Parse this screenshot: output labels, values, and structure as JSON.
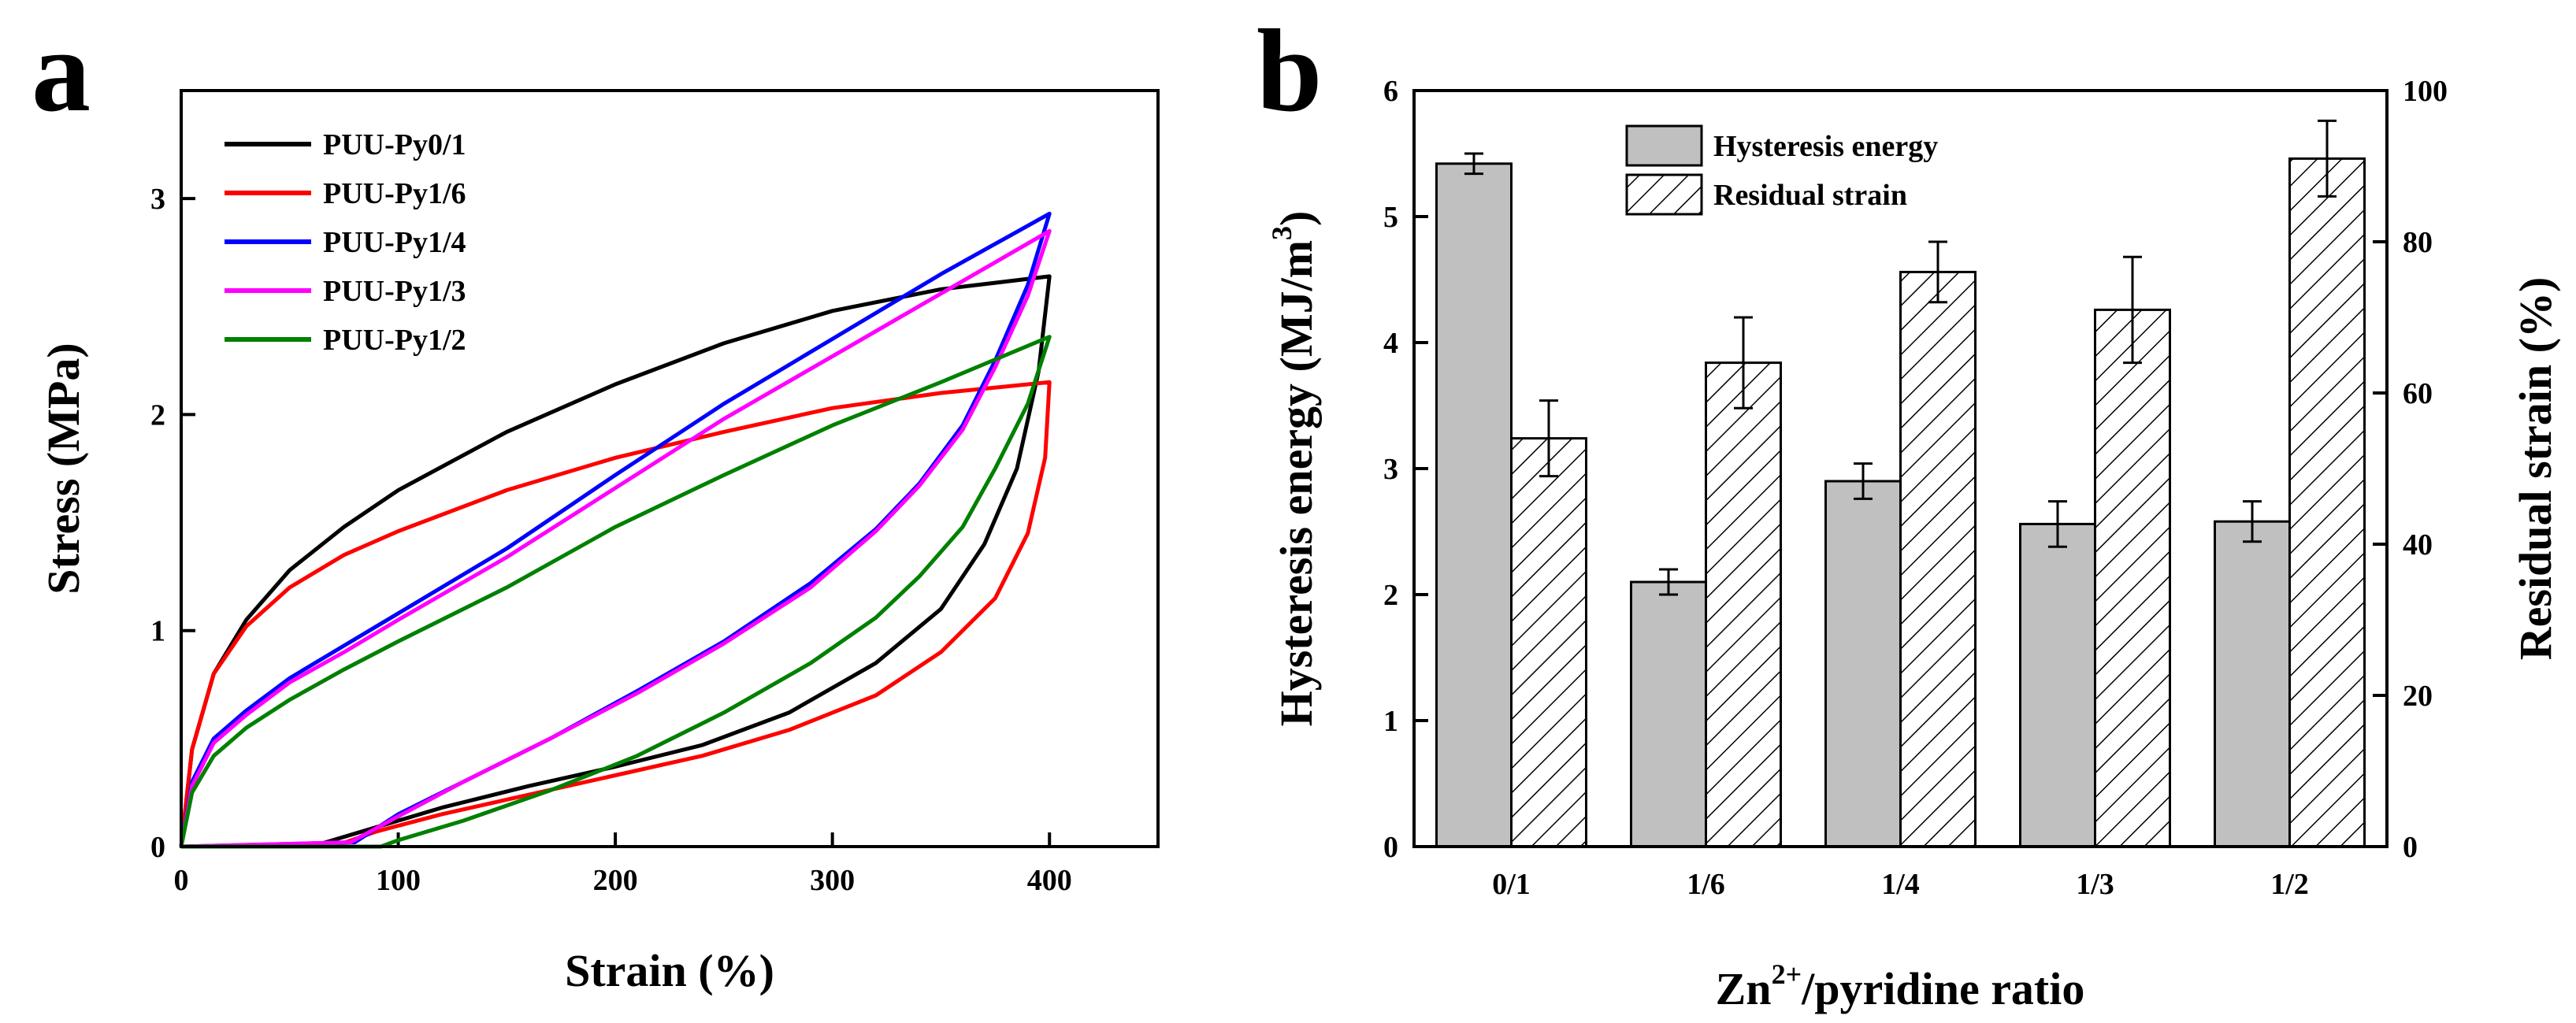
{
  "chart_data": [
    {
      "panel": "a",
      "type": "line",
      "title": "",
      "xlabel": "Strain (%)",
      "ylabel": "Stress (MPa)",
      "xlim": [
        0,
        450
      ],
      "ylim": [
        0,
        3.5
      ],
      "xticks": [
        0,
        100,
        200,
        300,
        400
      ],
      "yticks": [
        0,
        1,
        2,
        3
      ],
      "legend_position": "top-left",
      "series": [
        {
          "name": "PUU-Py0/1",
          "color": "#000000",
          "loading": [
            [
              0,
              0
            ],
            [
              5,
              0.45
            ],
            [
              15,
              0.8
            ],
            [
              30,
              1.05
            ],
            [
              50,
              1.28
            ],
            [
              75,
              1.48
            ],
            [
              100,
              1.65
            ],
            [
              150,
              1.92
            ],
            [
              200,
              2.14
            ],
            [
              250,
              2.33
            ],
            [
              300,
              2.48
            ],
            [
              350,
              2.58
            ],
            [
              400,
              2.64
            ]
          ],
          "unloading": [
            [
              400,
              2.64
            ],
            [
              395,
              2.2
            ],
            [
              385,
              1.75
            ],
            [
              370,
              1.4
            ],
            [
              350,
              1.1
            ],
            [
              320,
              0.85
            ],
            [
              280,
              0.62
            ],
            [
              240,
              0.47
            ],
            [
              200,
              0.37
            ],
            [
              160,
              0.28
            ],
            [
              120,
              0.18
            ],
            [
              90,
              0.09
            ],
            [
              60,
              0.0
            ],
            [
              0,
              0.0
            ]
          ]
        },
        {
          "name": "PUU-Py1/6",
          "color": "#ff0000",
          "loading": [
            [
              0,
              0
            ],
            [
              5,
              0.45
            ],
            [
              15,
              0.8
            ],
            [
              30,
              1.02
            ],
            [
              50,
              1.2
            ],
            [
              75,
              1.35
            ],
            [
              100,
              1.46
            ],
            [
              150,
              1.65
            ],
            [
              200,
              1.8
            ],
            [
              250,
              1.92
            ],
            [
              300,
              2.03
            ],
            [
              350,
              2.1
            ],
            [
              400,
              2.15
            ]
          ],
          "unloading": [
            [
              400,
              2.15
            ],
            [
              398,
              1.8
            ],
            [
              390,
              1.45
            ],
            [
              375,
              1.15
            ],
            [
              350,
              0.9
            ],
            [
              320,
              0.7
            ],
            [
              280,
              0.54
            ],
            [
              240,
              0.42
            ],
            [
              200,
              0.33
            ],
            [
              160,
              0.24
            ],
            [
              120,
              0.15
            ],
            [
              90,
              0.07
            ],
            [
              70,
              0.0
            ],
            [
              0,
              0.0
            ]
          ]
        },
        {
          "name": "PUU-Py1/4",
          "color": "#0000ff",
          "loading": [
            [
              0,
              0
            ],
            [
              5,
              0.3
            ],
            [
              15,
              0.5
            ],
            [
              30,
              0.63
            ],
            [
              50,
              0.78
            ],
            [
              75,
              0.93
            ],
            [
              100,
              1.08
            ],
            [
              150,
              1.38
            ],
            [
              200,
              1.72
            ],
            [
              250,
              2.05
            ],
            [
              300,
              2.35
            ],
            [
              350,
              2.65
            ],
            [
              400,
              2.93
            ]
          ],
          "unloading": [
            [
              400,
              2.93
            ],
            [
              390,
              2.6
            ],
            [
              375,
              2.25
            ],
            [
              360,
              1.95
            ],
            [
              340,
              1.68
            ],
            [
              320,
              1.47
            ],
            [
              290,
              1.22
            ],
            [
              250,
              0.95
            ],
            [
              210,
              0.72
            ],
            [
              170,
              0.5
            ],
            [
              130,
              0.3
            ],
            [
              100,
              0.15
            ],
            [
              80,
              0.02
            ],
            [
              0,
              0.0
            ]
          ]
        },
        {
          "name": "PUU-Py1/3",
          "color": "#ff00ff",
          "loading": [
            [
              0,
              0
            ],
            [
              5,
              0.28
            ],
            [
              15,
              0.48
            ],
            [
              30,
              0.61
            ],
            [
              50,
              0.76
            ],
            [
              75,
              0.9
            ],
            [
              100,
              1.05
            ],
            [
              150,
              1.34
            ],
            [
              200,
              1.66
            ],
            [
              250,
              1.98
            ],
            [
              300,
              2.27
            ],
            [
              350,
              2.56
            ],
            [
              400,
              2.85
            ]
          ],
          "unloading": [
            [
              400,
              2.85
            ],
            [
              390,
              2.55
            ],
            [
              375,
              2.22
            ],
            [
              360,
              1.93
            ],
            [
              340,
              1.67
            ],
            [
              320,
              1.46
            ],
            [
              290,
              1.2
            ],
            [
              250,
              0.94
            ],
            [
              210,
              0.71
            ],
            [
              170,
              0.5
            ],
            [
              130,
              0.3
            ],
            [
              100,
              0.14
            ],
            [
              78,
              0.02
            ],
            [
              0,
              0.0
            ]
          ]
        },
        {
          "name": "PUU-Py1/2",
          "color": "#008000",
          "loading": [
            [
              0,
              0
            ],
            [
              5,
              0.25
            ],
            [
              15,
              0.42
            ],
            [
              30,
              0.55
            ],
            [
              50,
              0.68
            ],
            [
              75,
              0.82
            ],
            [
              100,
              0.95
            ],
            [
              150,
              1.2
            ],
            [
              200,
              1.48
            ],
            [
              250,
              1.72
            ],
            [
              300,
              1.95
            ],
            [
              350,
              2.15
            ],
            [
              400,
              2.36
            ]
          ],
          "unloading": [
            [
              400,
              2.36
            ],
            [
              390,
              2.05
            ],
            [
              375,
              1.75
            ],
            [
              360,
              1.48
            ],
            [
              340,
              1.25
            ],
            [
              320,
              1.06
            ],
            [
              290,
              0.85
            ],
            [
              250,
              0.62
            ],
            [
              210,
              0.42
            ],
            [
              170,
              0.26
            ],
            [
              130,
              0.12
            ],
            [
              100,
              0.03
            ],
            [
              92,
              0.0
            ],
            [
              0,
              0.0
            ]
          ]
        }
      ]
    },
    {
      "panel": "b",
      "type": "bar",
      "title": "",
      "xlabel": "Zn²⁺/pyridine ratio",
      "xlabel_base": "Zn",
      "xlabel_sup": "2+",
      "xlabel_rest": "/pyridine ratio",
      "ylabel_left": "Hysteresis energy (MJ/m³)",
      "ylabel_left_base": "Hysteresis energy (MJ/m",
      "ylabel_left_sup": "3",
      "ylabel_left_close": ")",
      "ylabel_right": "Residual strain (%)",
      "ylim_left": [
        0,
        6
      ],
      "ylim_right": [
        0,
        100
      ],
      "yticks_left": [
        0,
        1,
        2,
        3,
        4,
        5,
        6
      ],
      "yticks_right": [
        0,
        20,
        40,
        60,
        80,
        100
      ],
      "categories": [
        "0/1",
        "1/6",
        "1/4",
        "1/3",
        "1/2"
      ],
      "legend_position": "top-center",
      "series": [
        {
          "name": "Hysteresis energy",
          "axis": "left",
          "fill": "#c0c0c0",
          "values": [
            5.42,
            2.1,
            2.9,
            2.56,
            2.58
          ],
          "errors": [
            0.08,
            0.1,
            0.14,
            0.18,
            0.16
          ]
        },
        {
          "name": "Residual strain",
          "axis": "right",
          "fill": "hatched",
          "values": [
            54,
            64,
            76,
            71,
            91
          ],
          "errors": [
            5,
            6,
            4,
            7,
            5
          ]
        }
      ]
    }
  ]
}
